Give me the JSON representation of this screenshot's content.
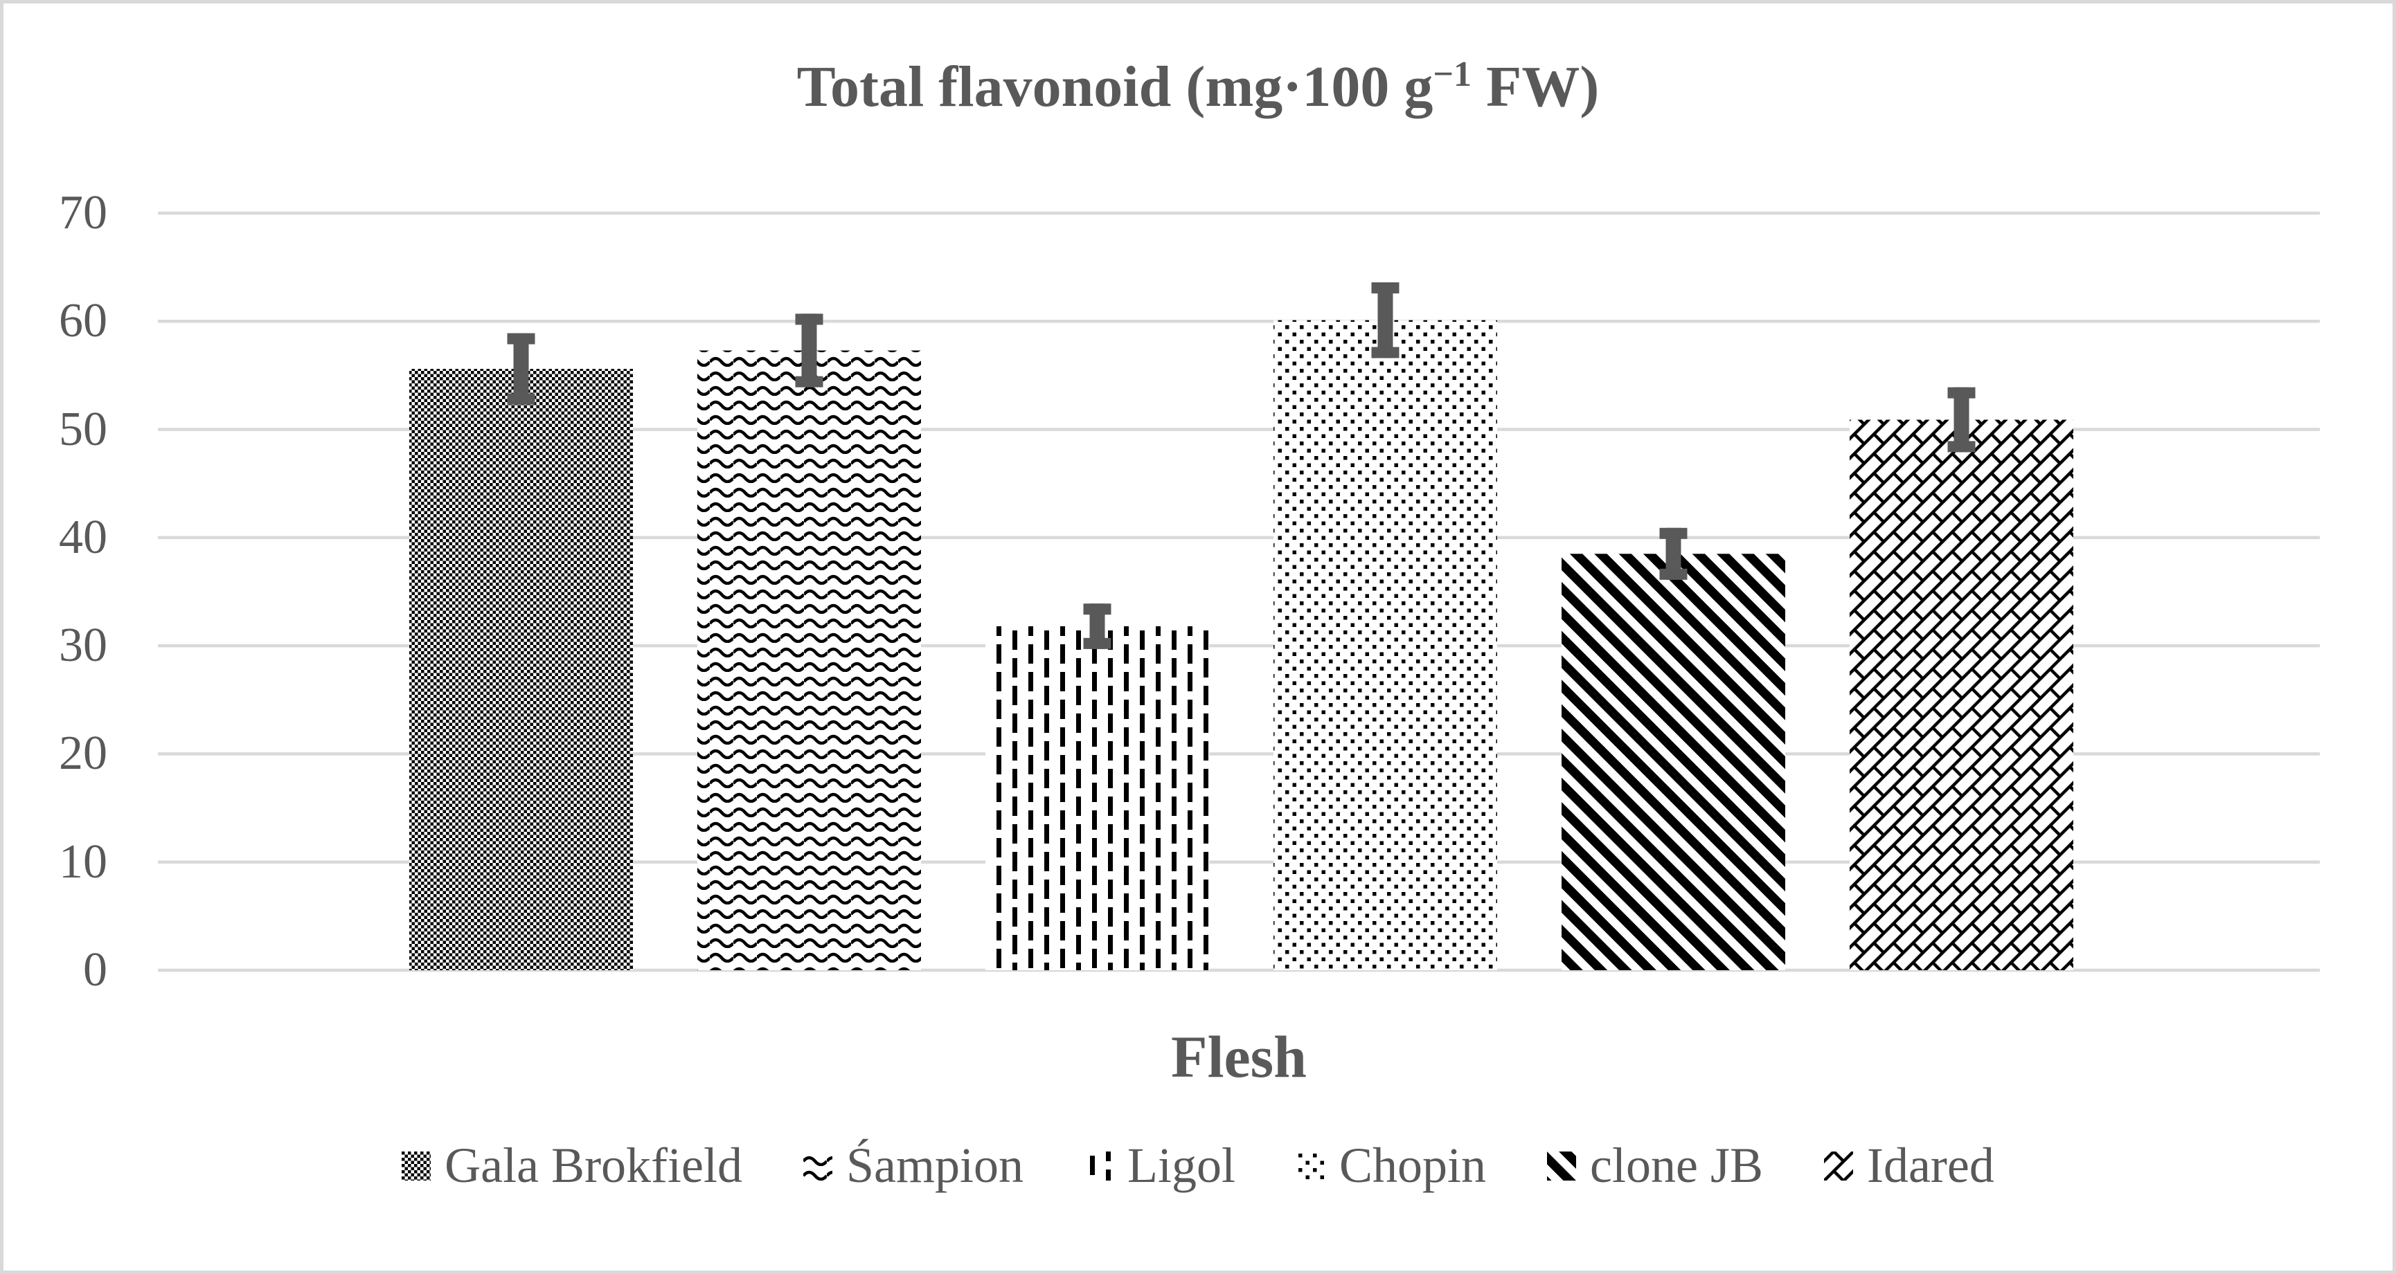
{
  "header": {
    "title_prefix": "Total flavonoid (mg·100 g",
    "title_superscript": "−1",
    "title_suffix": " FW)"
  },
  "chart_data": {
    "type": "bar",
    "title": "Total flavonoid (mg·100 g⁻¹ FW)",
    "xlabel": "Flesh",
    "ylabel": "",
    "ylim": [
      0,
      70
    ],
    "yticks": [
      0,
      10,
      20,
      30,
      40,
      50,
      60,
      70
    ],
    "grid": true,
    "legend_position": "bottom",
    "categories": [
      "Gala Brokfield",
      "Śampion",
      "Ligol",
      "Chopin",
      "clone JB",
      "Idared"
    ],
    "series": [
      {
        "name": "Flesh",
        "values": [
          55.6,
          57.3,
          31.8,
          60.1,
          38.5,
          50.9
        ],
        "error_bars": [
          3.3,
          3.4,
          2.1,
          3.5,
          2.4,
          3.0
        ]
      }
    ],
    "fill_patterns": [
      "small-checkerboard",
      "horizontal-waves",
      "dashed-vertical-lines",
      "sparse-dots",
      "thick-diagonal-stripes",
      "diagonal-brick"
    ],
    "colors": {
      "pattern_ink": "#000000",
      "text": "#595959",
      "gridline": "#d9d9d9",
      "error_bar": "#595959",
      "background": "#ffffff",
      "border": "#d9d9d9"
    }
  }
}
